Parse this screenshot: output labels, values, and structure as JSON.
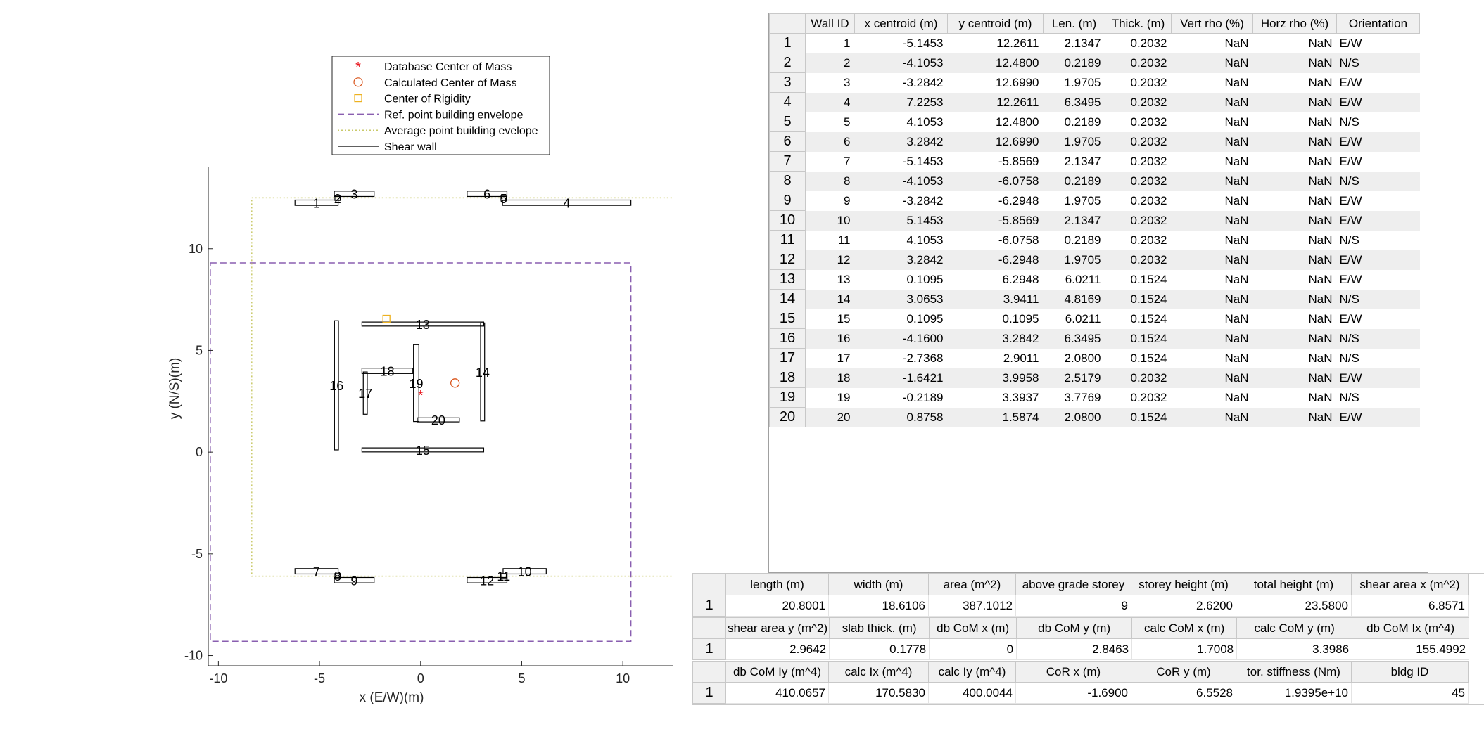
{
  "plot": {
    "xlabel": "x (E/W)(m)",
    "ylabel": "y (N/S)(m)",
    "xlim": [
      -10.5,
      12.5
    ],
    "ylim": [
      -10.5,
      14
    ],
    "xticks": [
      -10,
      -5,
      0,
      5,
      10
    ],
    "yticks": [
      -10,
      -5,
      0,
      5,
      10
    ],
    "colors": {
      "database_com": "#e8131b",
      "calculated_com": "#d95319",
      "rigidity": "#edb120",
      "ref_envelope": "#8a5fb0",
      "avg_envelope": "#c9c96a",
      "wall": "#000000"
    },
    "legend": [
      {
        "label": "Database Center of Mass",
        "marker": "asterisk"
      },
      {
        "label": "Calculated Center of Mass",
        "marker": "circle"
      },
      {
        "label": "Center of Rigidity",
        "marker": "square"
      },
      {
        "label": "Ref. point building envelope",
        "marker": "dashed"
      },
      {
        "label": "Average point building evelope",
        "marker": "dotted"
      },
      {
        "label": "Shear wall",
        "marker": "solid"
      }
    ],
    "ref_envelope": {
      "xmin": -10.4,
      "xmax": 10.4,
      "ymin": -9.3,
      "ymax": 9.3
    },
    "avg_envelope": {
      "xmin": -8.35,
      "xmax": 12.5,
      "ymin": -6.1,
      "ymax": 12.5
    },
    "markers": {
      "database_com": {
        "x": 0,
        "y": 2.8463
      },
      "calculated_com": {
        "x": 1.7008,
        "y": 3.3986
      },
      "rigidity": {
        "x": -1.69,
        "y": 6.5528
      }
    },
    "wall_labels": [
      {
        "text": "1",
        "x": -5.1453,
        "y": 12.2611
      },
      {
        "text": "2",
        "x": -4.1053,
        "y": 12.48
      },
      {
        "text": "3",
        "x": -3.2842,
        "y": 12.699
      },
      {
        "text": "4",
        "x": 7.2253,
        "y": 12.2611
      },
      {
        "text": "5",
        "x": 4.1053,
        "y": 12.48
      },
      {
        "text": "6",
        "x": 3.2842,
        "y": 12.699
      },
      {
        "text": "7",
        "x": -5.1453,
        "y": -5.8569
      },
      {
        "text": "8",
        "x": -4.1053,
        "y": -6.0758
      },
      {
        "text": "9",
        "x": -3.2842,
        "y": -6.2948
      },
      {
        "text": "10",
        "x": 5.1453,
        "y": -5.8569
      },
      {
        "text": "11",
        "x": 4.1053,
        "y": -6.0758
      },
      {
        "text": "12",
        "x": 3.2842,
        "y": -6.2948
      },
      {
        "text": "13",
        "x": 0.1095,
        "y": 6.2948
      },
      {
        "text": "14",
        "x": 3.0653,
        "y": 3.9411
      },
      {
        "text": "15",
        "x": 0.1095,
        "y": 0.1095
      },
      {
        "text": "16",
        "x": -4.16,
        "y": 3.2842
      },
      {
        "text": "17",
        "x": -2.7368,
        "y": 2.9011
      },
      {
        "text": "18",
        "x": -1.6421,
        "y": 3.9958
      },
      {
        "text": "19",
        "x": -0.2189,
        "y": 3.3937
      },
      {
        "text": "20",
        "x": 0.8758,
        "y": 1.5874
      }
    ]
  },
  "walls_table": {
    "headers": [
      "Wall ID",
      "x centroid (m)",
      "y centroid (m)",
      "Len. (m)",
      "Thick. (m)",
      "Vert rho (%)",
      "Horz rho (%)",
      "Orientation"
    ],
    "rows": [
      [
        "1",
        "1",
        "-5.1453",
        "12.2611",
        "2.1347",
        "0.2032",
        "NaN",
        "NaN",
        "E/W"
      ],
      [
        "2",
        "2",
        "-4.1053",
        "12.4800",
        "0.2189",
        "0.2032",
        "NaN",
        "NaN",
        "N/S"
      ],
      [
        "3",
        "3",
        "-3.2842",
        "12.6990",
        "1.9705",
        "0.2032",
        "NaN",
        "NaN",
        "E/W"
      ],
      [
        "4",
        "4",
        "7.2253",
        "12.2611",
        "6.3495",
        "0.2032",
        "NaN",
        "NaN",
        "E/W"
      ],
      [
        "5",
        "5",
        "4.1053",
        "12.4800",
        "0.2189",
        "0.2032",
        "NaN",
        "NaN",
        "N/S"
      ],
      [
        "6",
        "6",
        "3.2842",
        "12.6990",
        "1.9705",
        "0.2032",
        "NaN",
        "NaN",
        "E/W"
      ],
      [
        "7",
        "7",
        "-5.1453",
        "-5.8569",
        "2.1347",
        "0.2032",
        "NaN",
        "NaN",
        "E/W"
      ],
      [
        "8",
        "8",
        "-4.1053",
        "-6.0758",
        "0.2189",
        "0.2032",
        "NaN",
        "NaN",
        "N/S"
      ],
      [
        "9",
        "9",
        "-3.2842",
        "-6.2948",
        "1.9705",
        "0.2032",
        "NaN",
        "NaN",
        "E/W"
      ],
      [
        "10",
        "10",
        "5.1453",
        "-5.8569",
        "2.1347",
        "0.2032",
        "NaN",
        "NaN",
        "E/W"
      ],
      [
        "11",
        "11",
        "4.1053",
        "-6.0758",
        "0.2189",
        "0.2032",
        "NaN",
        "NaN",
        "N/S"
      ],
      [
        "12",
        "12",
        "3.2842",
        "-6.2948",
        "1.9705",
        "0.2032",
        "NaN",
        "NaN",
        "E/W"
      ],
      [
        "13",
        "13",
        "0.1095",
        "6.2948",
        "6.0211",
        "0.1524",
        "NaN",
        "NaN",
        "E/W"
      ],
      [
        "14",
        "14",
        "3.0653",
        "3.9411",
        "4.8169",
        "0.1524",
        "NaN",
        "NaN",
        "N/S"
      ],
      [
        "15",
        "15",
        "0.1095",
        "0.1095",
        "6.0211",
        "0.1524",
        "NaN",
        "NaN",
        "E/W"
      ],
      [
        "16",
        "16",
        "-4.1600",
        "3.2842",
        "6.3495",
        "0.1524",
        "NaN",
        "NaN",
        "N/S"
      ],
      [
        "17",
        "17",
        "-2.7368",
        "2.9011",
        "2.0800",
        "0.1524",
        "NaN",
        "NaN",
        "N/S"
      ],
      [
        "18",
        "18",
        "-1.6421",
        "3.9958",
        "2.5179",
        "0.2032",
        "NaN",
        "NaN",
        "E/W"
      ],
      [
        "19",
        "19",
        "-0.2189",
        "3.3937",
        "3.7769",
        "0.2032",
        "NaN",
        "NaN",
        "N/S"
      ],
      [
        "20",
        "20",
        "0.8758",
        "1.5874",
        "2.0800",
        "0.1524",
        "NaN",
        "NaN",
        "E/W"
      ]
    ]
  },
  "summary_table": {
    "blocks": [
      {
        "headers": [
          "length (m)",
          "width (m)",
          "area (m^2)",
          "above grade storey",
          "storey height (m)",
          "total height (m)",
          "shear area x (m^2)"
        ],
        "row_label": "1",
        "values": [
          "20.8001",
          "18.6106",
          "387.1012",
          "9",
          "2.6200",
          "23.5800",
          "6.8571"
        ]
      },
      {
        "headers": [
          "shear area y (m^2)",
          "slab thick. (m)",
          "db CoM x (m)",
          "db CoM y (m)",
          "calc CoM x (m)",
          "calc CoM y (m)",
          "db CoM Ix (m^4)"
        ],
        "row_label": "1",
        "values": [
          "2.9642",
          "0.1778",
          "0",
          "2.8463",
          "1.7008",
          "3.3986",
          "155.4992"
        ]
      },
      {
        "headers": [
          "db CoM Iy (m^4)",
          "calc Ix (m^4)",
          "calc Iy (m^4)",
          "CoR x (m)",
          "CoR y (m)",
          "tor. stiffness (Nm)",
          "bldg ID"
        ],
        "row_label": "1",
        "values": [
          "410.0657",
          "170.5830",
          "400.0044",
          "-1.6900",
          "6.5528",
          "1.9395e+10",
          "45"
        ]
      }
    ]
  }
}
